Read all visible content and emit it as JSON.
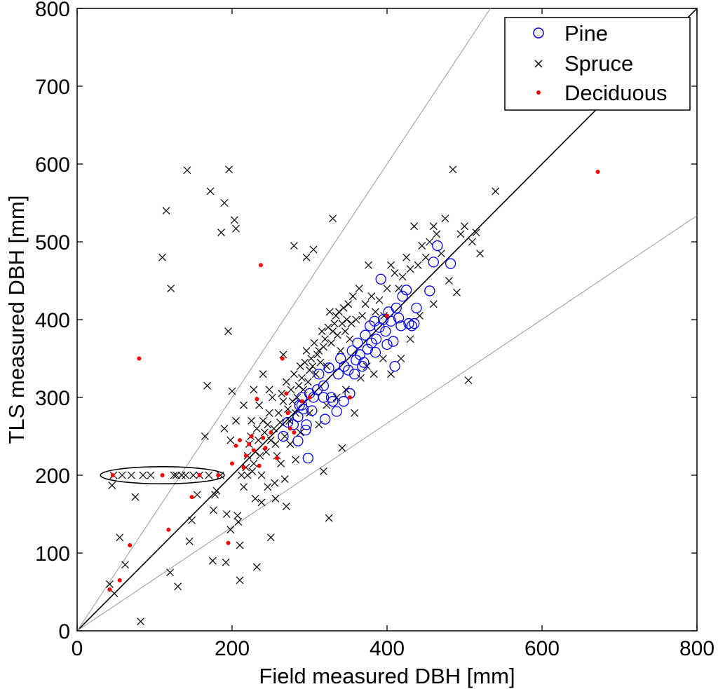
{
  "chart_data": {
    "type": "scatter",
    "title": "",
    "xlabel": "Field measured DBH [mm]",
    "ylabel": "TLS measured DBH [mm]",
    "xlim": [
      0,
      800
    ],
    "ylim": [
      0,
      800
    ],
    "xticks": [
      "0",
      "200",
      "400",
      "600",
      "800"
    ],
    "yticks": [
      "0",
      "100",
      "200",
      "300",
      "400",
      "500",
      "600",
      "700",
      "800"
    ],
    "grid": false,
    "legend_position": "top-right",
    "reference_lines": [
      {
        "kind": "identity",
        "slope": 1.0,
        "color": "#000000"
      },
      {
        "kind": "upper-bound",
        "slope": 1.5,
        "color": "#999999"
      },
      {
        "kind": "lower-bound",
        "slope": 0.667,
        "color": "#999999"
      }
    ],
    "annotation_ellipse": {
      "cx": 110,
      "cy": 200,
      "rx": 80,
      "ry": 11,
      "color": "#000000"
    },
    "series": [
      {
        "name": "Pine",
        "marker": "circle",
        "color": "#0000ff",
        "points": [
          [
            266,
            250
          ],
          [
            272,
            268
          ],
          [
            279,
            265
          ],
          [
            285,
            275
          ],
          [
            287,
            290
          ],
          [
            290,
            300
          ],
          [
            292,
            285
          ],
          [
            295,
            258
          ],
          [
            300,
            305
          ],
          [
            305,
            300
          ],
          [
            310,
            310
          ],
          [
            312,
            330
          ],
          [
            318,
            300
          ],
          [
            320,
            272
          ],
          [
            325,
            338
          ],
          [
            328,
            300
          ],
          [
            330,
            295
          ],
          [
            335,
            282
          ],
          [
            340,
            350
          ],
          [
            345,
            340
          ],
          [
            350,
            335
          ],
          [
            352,
            305
          ],
          [
            355,
            360
          ],
          [
            360,
            348
          ],
          [
            362,
            370
          ],
          [
            365,
            355
          ],
          [
            370,
            345
          ],
          [
            372,
            380
          ],
          [
            375,
            362
          ],
          [
            378,
            392
          ],
          [
            380,
            370
          ],
          [
            384,
            398
          ],
          [
            386,
            375
          ],
          [
            390,
            390
          ],
          [
            392,
            452
          ],
          [
            395,
            400
          ],
          [
            398,
            385
          ],
          [
            400,
            368
          ],
          [
            402,
            410
          ],
          [
            405,
            398
          ],
          [
            408,
            372
          ],
          [
            410,
            340
          ],
          [
            412,
            415
          ],
          [
            415,
            402
          ],
          [
            418,
            392
          ],
          [
            420,
            430
          ],
          [
            425,
            438
          ],
          [
            428,
            395
          ],
          [
            432,
            392
          ],
          [
            435,
            395
          ],
          [
            438,
            415
          ],
          [
            455,
            437
          ],
          [
            460,
            474
          ],
          [
            465,
            495
          ],
          [
            482,
            472
          ],
          [
            290,
            290
          ],
          [
            298,
            222
          ],
          [
            285,
            244
          ],
          [
            296,
            265
          ],
          [
            303,
            283
          ],
          [
            318,
            315
          ],
          [
            337,
            330
          ],
          [
            344,
            295
          ],
          [
            358,
            330
          ],
          [
            368,
            340
          ],
          [
            385,
            358
          ]
        ]
      },
      {
        "name": "Spruce",
        "marker": "x",
        "color": "#000000",
        "points": [
          [
            42,
            60
          ],
          [
            48,
            48
          ],
          [
            45,
            187
          ],
          [
            47,
            200
          ],
          [
            58,
            200
          ],
          [
            62,
            85
          ],
          [
            55,
            120
          ],
          [
            70,
            200
          ],
          [
            75,
            172
          ],
          [
            82,
            12
          ],
          [
            85,
            200
          ],
          [
            95,
            200
          ],
          [
            110,
            480
          ],
          [
            115,
            540
          ],
          [
            120,
            75
          ],
          [
            125,
            200
          ],
          [
            128,
            200
          ],
          [
            130,
            57
          ],
          [
            135,
            200
          ],
          [
            140,
            200
          ],
          [
            145,
            115
          ],
          [
            148,
            142
          ],
          [
            150,
            200
          ],
          [
            155,
            175
          ],
          [
            158,
            200
          ],
          [
            165,
            250
          ],
          [
            168,
            315
          ],
          [
            170,
            200
          ],
          [
            172,
            565
          ],
          [
            175,
            90
          ],
          [
            176,
            155
          ],
          [
            178,
            175
          ],
          [
            180,
            180
          ],
          [
            185,
            200
          ],
          [
            186,
            512
          ],
          [
            190,
            550
          ],
          [
            192,
            88
          ],
          [
            195,
            385
          ],
          [
            196,
            593
          ],
          [
            198,
            130
          ],
          [
            200,
            308
          ],
          [
            203,
            528
          ],
          [
            205,
            517
          ],
          [
            207,
            148
          ],
          [
            208,
            140
          ],
          [
            210,
            110
          ],
          [
            212,
            200
          ],
          [
            215,
            185
          ],
          [
            218,
            210
          ],
          [
            220,
            225
          ],
          [
            222,
            240
          ],
          [
            224,
            250
          ],
          [
            226,
            205
          ],
          [
            228,
            215
          ],
          [
            230,
            230
          ],
          [
            232,
            260
          ],
          [
            234,
            245
          ],
          [
            236,
            225
          ],
          [
            238,
            200
          ],
          [
            240,
            270
          ],
          [
            242,
            255
          ],
          [
            244,
            230
          ],
          [
            246,
            265
          ],
          [
            248,
            280
          ],
          [
            250,
            245
          ],
          [
            252,
            300
          ],
          [
            254,
            260
          ],
          [
            256,
            240
          ],
          [
            258,
            225
          ],
          [
            260,
            280
          ],
          [
            262,
            268
          ],
          [
            264,
            305
          ],
          [
            266,
            295
          ],
          [
            268,
            250
          ],
          [
            270,
            320
          ],
          [
            272,
            285
          ],
          [
            274,
            270
          ],
          [
            276,
            310
          ],
          [
            278,
            295
          ],
          [
            280,
            330
          ],
          [
            282,
            280
          ],
          [
            284,
            300
          ],
          [
            286,
            315
          ],
          [
            288,
            340
          ],
          [
            290,
            325
          ],
          [
            292,
            310
          ],
          [
            294,
            345
          ],
          [
            296,
            360
          ],
          [
            298,
            320
          ],
          [
            300,
            335
          ],
          [
            302,
            350
          ],
          [
            304,
            340
          ],
          [
            306,
            370
          ],
          [
            308,
            330
          ],
          [
            310,
            355
          ],
          [
            312,
            360
          ],
          [
            314,
            345
          ],
          [
            316,
            385
          ],
          [
            318,
            365
          ],
          [
            320,
            375
          ],
          [
            322,
            340
          ],
          [
            324,
            390
          ],
          [
            326,
            410
          ],
          [
            328,
            370
          ],
          [
            330,
            385
          ],
          [
            332,
            395
          ],
          [
            334,
            405
          ],
          [
            336,
            380
          ],
          [
            338,
            410
          ],
          [
            340,
            360
          ],
          [
            342,
            395
          ],
          [
            344,
            415
          ],
          [
            346,
            385
          ],
          [
            348,
            400
          ],
          [
            350,
            420
          ],
          [
            352,
            375
          ],
          [
            354,
            395
          ],
          [
            356,
            430
          ],
          [
            360,
            400
          ],
          [
            364,
            440
          ],
          [
            368,
            405
          ],
          [
            372,
            420
          ],
          [
            376,
            470
          ],
          [
            380,
            430
          ],
          [
            385,
            410
          ],
          [
            390,
            425
          ],
          [
            396,
            405
          ],
          [
            400,
            440
          ],
          [
            405,
            470
          ],
          [
            410,
            460
          ],
          [
            415,
            440
          ],
          [
            420,
            455
          ],
          [
            425,
            480
          ],
          [
            430,
            465
          ],
          [
            435,
            520
          ],
          [
            440,
            470
          ],
          [
            445,
            495
          ],
          [
            450,
            480
          ],
          [
            455,
            500
          ],
          [
            460,
            520
          ],
          [
            464,
            510
          ],
          [
            470,
            485
          ],
          [
            475,
            530
          ],
          [
            480,
            450
          ],
          [
            485,
            593
          ],
          [
            490,
            435
          ],
          [
            495,
            510
          ],
          [
            500,
            520
          ],
          [
            505,
            322
          ],
          [
            510,
            500
          ],
          [
            515,
            512
          ],
          [
            520,
            485
          ],
          [
            540,
            565
          ],
          [
            330,
            530
          ],
          [
            305,
            490
          ],
          [
            325,
            145
          ],
          [
            318,
            205
          ],
          [
            342,
            235
          ],
          [
            296,
            480
          ],
          [
            280,
            495
          ],
          [
            232,
            82
          ],
          [
            210,
            65
          ],
          [
            142,
            592
          ],
          [
            121,
            440
          ],
          [
            193,
            150
          ],
          [
            250,
            120
          ],
          [
            266,
            355
          ],
          [
            270,
            160
          ],
          [
            255,
            190
          ],
          [
            240,
            330
          ],
          [
            228,
            310
          ],
          [
            215,
            290
          ],
          [
            263,
            215
          ],
          [
            275,
            240
          ],
          [
            288,
            255
          ],
          [
            300,
            280
          ],
          [
            312,
            265
          ],
          [
            322,
            290
          ],
          [
            335,
            300
          ],
          [
            347,
            310
          ],
          [
            358,
            280
          ],
          [
            366,
            325
          ],
          [
            374,
            340
          ],
          [
            383,
            330
          ],
          [
            395,
            350
          ],
          [
            405,
            330
          ],
          [
            418,
            350
          ],
          [
            430,
            375
          ],
          [
            442,
            405
          ],
          [
            460,
            420
          ],
          [
            220,
            200
          ],
          [
            230,
            170
          ],
          [
            238,
            165
          ],
          [
            246,
            185
          ],
          [
            256,
            170
          ],
          [
            268,
            195
          ],
          [
            282,
            220
          ],
          [
            205,
            270
          ],
          [
            198,
            245
          ],
          [
            190,
            260
          ],
          [
            225,
            270
          ],
          [
            235,
            290
          ],
          [
            248,
            310
          ]
        ]
      },
      {
        "name": "Deciduous",
        "marker": "dot",
        "color": "#ff0000",
        "points": [
          [
            42,
            53
          ],
          [
            46,
            200
          ],
          [
            55,
            65
          ],
          [
            68,
            110
          ],
          [
            80,
            350
          ],
          [
            110,
            200
          ],
          [
            118,
            130
          ],
          [
            148,
            172
          ],
          [
            158,
            200
          ],
          [
            182,
            200
          ],
          [
            195,
            113
          ],
          [
            200,
            215
          ],
          [
            205,
            238
          ],
          [
            210,
            245
          ],
          [
            215,
            210
          ],
          [
            218,
            225
          ],
          [
            222,
            240
          ],
          [
            225,
            250
          ],
          [
            228,
            232
          ],
          [
            232,
            298
          ],
          [
            235,
            212
          ],
          [
            237,
            470
          ],
          [
            240,
            248
          ],
          [
            243,
            235
          ],
          [
            250,
            255
          ],
          [
            258,
            222
          ],
          [
            265,
            350
          ],
          [
            270,
            305
          ],
          [
            272,
            280
          ],
          [
            275,
            260
          ],
          [
            280,
            255
          ],
          [
            290,
            295
          ],
          [
            300,
            300
          ],
          [
            352,
            300
          ],
          [
            400,
            405
          ],
          [
            672,
            590
          ]
        ]
      }
    ]
  }
}
